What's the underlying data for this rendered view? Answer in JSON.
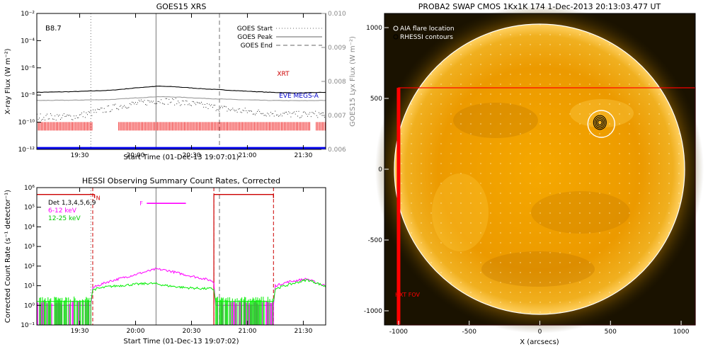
{
  "chart_data": [
    {
      "type": "line",
      "title": "GOES15 XRS",
      "xlabel": "Start Time (01-Dec-13 19:07:01)",
      "ylabel": "X-ray Flux (W m⁻²)",
      "y2label": "GOES15 Lyx Flux (W m⁻²)",
      "x_ticks": [
        "19:30",
        "20:00",
        "20:30",
        "21:00",
        "21:30"
      ],
      "y_ticks": [
        "10⁻²",
        "10⁻⁴",
        "10⁻⁶",
        "10⁻⁸",
        "10⁻¹⁰",
        "10⁻¹²"
      ],
      "y2_ticks": [
        "0.010",
        "0.009",
        "0.008",
        "0.007",
        "0.006"
      ],
      "xlim_min": [
        0,
        155
      ],
      "ylim_log10": [
        -12,
        -2
      ],
      "y2lim": [
        0.006,
        0.01
      ],
      "class_label": "B8.7",
      "legend": [
        "GOES Start",
        "GOES Peak",
        "GOES End"
      ],
      "legend_position": "top-right",
      "event_lines_min": {
        "start": 29,
        "peak": 64,
        "end": 98
      },
      "series": [
        {
          "name": "XRT",
          "color": "#cc0000",
          "x": [
            0,
            20,
            40,
            55,
            65,
            75,
            90,
            110,
            125,
            140,
            155
          ],
          "y_log10": [
            -7.8,
            -7.75,
            -7.65,
            -7.45,
            -7.35,
            -7.4,
            -7.55,
            -7.7,
            -7.8,
            -7.85,
            -7.8
          ]
        },
        {
          "name": "",
          "color": "#999999",
          "x": [
            0,
            20,
            40,
            55,
            65,
            75,
            90,
            110,
            125,
            140,
            155
          ],
          "y_log10": [
            -8.4,
            -8.38,
            -8.33,
            -8.2,
            -8.12,
            -8.15,
            -8.25,
            -8.35,
            -8.4,
            -8.42,
            -8.4
          ]
        },
        {
          "name": "EVE MEGS-A",
          "color": "#0000cc",
          "x": [
            0,
            20,
            30,
            45,
            60,
            65,
            75,
            90,
            105,
            120,
            140,
            155
          ],
          "y_log10": [
            -9.6,
            -9.6,
            -9.3,
            -8.8,
            -8.5,
            -8.4,
            -8.5,
            -8.8,
            -9.1,
            -9.3,
            -9.45,
            -9.4
          ]
        }
      ],
      "rhessi_coverage_min": [
        [
          0,
          30
        ],
        [
          44,
          147
        ],
        [
          150,
          155
        ]
      ],
      "rhessi_coverage_y_log10": -10.3,
      "blue_baseline_y_log10": -11.9
    },
    {
      "type": "line",
      "title": "HESSI Observing Summary Count Rates, Corrected",
      "xlabel": "Start Time (01-Dec-13 19:07:02)",
      "ylabel": "Corrected Count Rate (s⁻¹ detector⁻¹)",
      "x_ticks": [
        "19:30",
        "20:00",
        "20:30",
        "21:00",
        "21:30"
      ],
      "y_ticks": [
        "10⁶",
        "10⁵",
        "10⁴",
        "10³",
        "10²",
        "10¹",
        "10⁰",
        "10⁻¹"
      ],
      "xlim_min": [
        0,
        155
      ],
      "ylim_log10": [
        -1,
        6
      ],
      "detectors_label": "Det 1,3,4,5,6,9",
      "legend_position": "top-left",
      "event_lines_min": {
        "start": 29,
        "peak": 64,
        "end": 98
      },
      "night_bar_min": [
        [
          0,
          31
        ],
        [
          95,
          127
        ]
      ],
      "night_bar_y_log10": 5.65,
      "dashed_red_min": [
        30,
        95,
        127
      ],
      "n_label": "N",
      "f_label": "F",
      "f_bar": {
        "x": [
          59,
          80
        ],
        "y_log10": 5.2
      },
      "series": [
        {
          "name": "6-12 keV",
          "color": "#ff00ff",
          "x": [
            0,
            29,
            30,
            38,
            50,
            60,
            64,
            70,
            80,
            90,
            94,
            95,
            96,
            105,
            118,
            127,
            128,
            135,
            145,
            150,
            155
          ],
          "y_log10": [
            0,
            0,
            0.9,
            1.2,
            1.5,
            1.75,
            1.85,
            1.78,
            1.55,
            1.35,
            1.25,
            1.15,
            0,
            0,
            0,
            0,
            1.0,
            1.2,
            1.35,
            1.15,
            1.0
          ]
        },
        {
          "name": "12-25 keV",
          "color": "#00ee00",
          "x": [
            0,
            29,
            30,
            38,
            50,
            60,
            64,
            70,
            80,
            90,
            94,
            95,
            96,
            105,
            118,
            127,
            128,
            135,
            145,
            150,
            155
          ],
          "y_log10": [
            0.2,
            0.2,
            0.8,
            0.95,
            1.05,
            1.12,
            1.1,
            1.0,
            0.9,
            0.85,
            0.85,
            0.8,
            0.2,
            0.2,
            0.2,
            0.2,
            0.85,
            1.05,
            1.3,
            1.15,
            0.95
          ]
        }
      ]
    },
    {
      "type": "heatmap",
      "title": "PROBA2 SWAP CMOS 1Kx1K 174   1-Dec-2013 20:13:03.477 UT",
      "xlabel": "X (arcsecs)",
      "ylabel": "",
      "x_ticks": [
        "-1000",
        "-500",
        "0",
        "500",
        "1000"
      ],
      "y_ticks": [
        "1000",
        "500",
        "0",
        "-500",
        "-1000"
      ],
      "xlim": [
        -1100,
        1100
      ],
      "ylim": [
        -1100,
        1100
      ],
      "solar_radius_arcsec": 975,
      "legend": [
        "AIA flare location",
        "RHESSI contours"
      ],
      "legend_position": "top-left",
      "flare_location": [
        435,
        320
      ],
      "rhessi_contour_center": [
        425,
        330
      ],
      "fov_box": {
        "x": [
          -1000,
          1100
        ],
        "y": [
          -1100,
          575
        ],
        "label": "HXT FOV"
      }
    }
  ]
}
